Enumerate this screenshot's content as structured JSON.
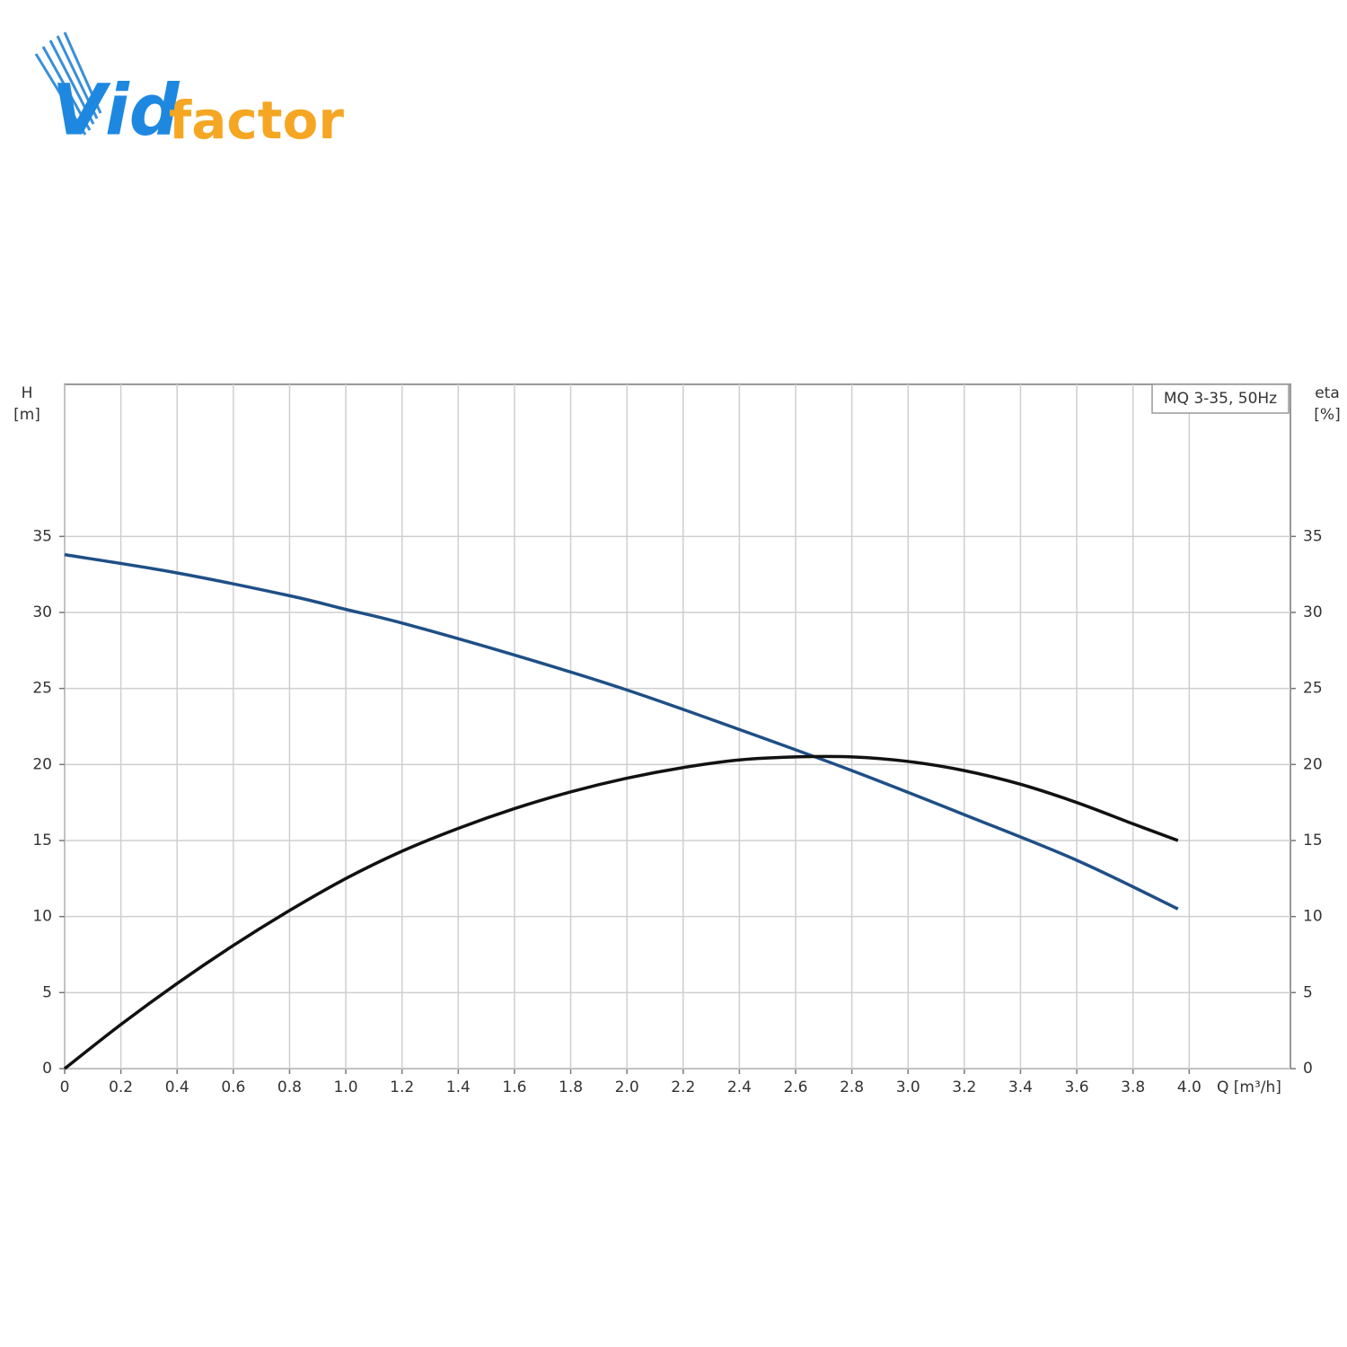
{
  "logo": [
    "Vid",
    "factor"
  ],
  "chart_data": {
    "type": "line",
    "legend_text": "MQ 3-35, 50Hz",
    "y_label": [
      "H",
      "[m]"
    ],
    "y2_label": [
      "eta",
      "[%]"
    ],
    "x_label": "Q [m³/h]",
    "xlim": [
      0,
      4.36
    ],
    "xticks": [
      0,
      0.2,
      0.4,
      0.6,
      0.8,
      {
        "value": 1,
        "label": "1.0"
      },
      1.2,
      1.4,
      1.6,
      1.8,
      {
        "value": 2,
        "label": "2.0"
      },
      2.2,
      2.4,
      2.6,
      2.8,
      {
        "value": 3,
        "label": "3.0"
      },
      3.2,
      3.4,
      3.6,
      3.8,
      {
        "value": 4,
        "label": "4.0"
      }
    ],
    "ylim": [
      0,
      45
    ],
    "yticks": [
      0,
      5,
      10,
      15,
      20,
      25,
      30,
      35
    ],
    "y2lim": [
      0,
      45
    ],
    "y2ticks": [
      0,
      5,
      10,
      15,
      20,
      25,
      30,
      35
    ],
    "grid": true,
    "series": [
      {
        "name": "H",
        "color": "#1f4f86",
        "x": [
          0,
          0.4,
          0.8,
          1.0,
          1.2,
          1.6,
          2.0,
          2.4,
          2.8,
          3.2,
          3.6,
          3.96
        ],
        "values": [
          33.8,
          32.6,
          31.1,
          30.2,
          29.3,
          27.2,
          24.9,
          22.3,
          19.6,
          16.7,
          13.7,
          10.5
        ]
      },
      {
        "name": "eta",
        "color": "#111111",
        "axis": "y2",
        "x": [
          0,
          0.2,
          0.4,
          0.6,
          0.8,
          1.0,
          1.2,
          1.4,
          1.6,
          1.8,
          2.0,
          2.2,
          2.4,
          2.6,
          2.8,
          3.0,
          3.2,
          3.4,
          3.6,
          3.8,
          3.96
        ],
        "values": [
          0,
          2.9,
          5.6,
          8.1,
          10.4,
          12.5,
          14.3,
          15.8,
          17.1,
          18.2,
          19.1,
          19.8,
          20.3,
          20.5,
          20.5,
          20.2,
          19.6,
          18.7,
          17.5,
          16.1,
          15.0
        ]
      }
    ]
  }
}
